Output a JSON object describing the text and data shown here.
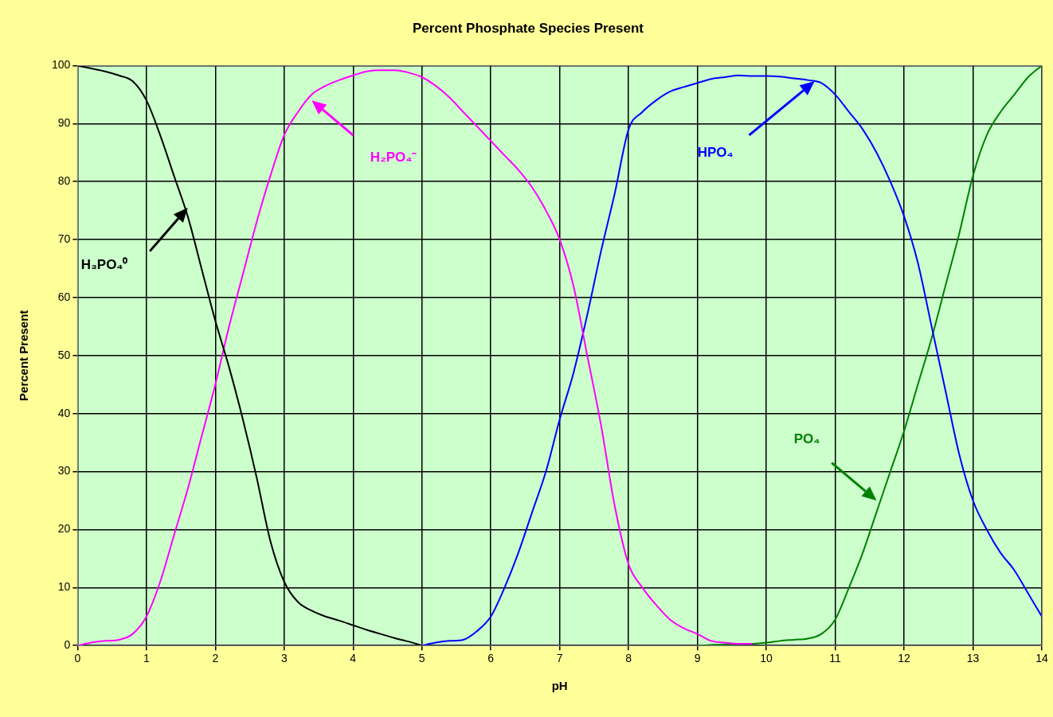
{
  "chart_data": {
    "type": "line",
    "title": "Percent Phosphate Species Present",
    "xlabel": "pH",
    "ylabel": "Percent Present",
    "xlim": [
      0,
      14
    ],
    "xticks": [
      0,
      1,
      2,
      3,
      4,
      5,
      6,
      7,
      8,
      9,
      10,
      11,
      12,
      13,
      14
    ],
    "ylim": [
      0,
      100
    ],
    "yticks": [
      0,
      10,
      20,
      30,
      40,
      50,
      60,
      70,
      80,
      90,
      100
    ],
    "grid": true,
    "legend": false,
    "series": [
      {
        "name": "H₃PO₄⁰",
        "color": "#000000",
        "x": [
          0,
          0.2,
          0.4,
          0.6,
          0.8,
          1,
          1.2,
          1.4,
          1.6,
          1.8,
          2,
          2.2,
          2.4,
          2.6,
          2.8,
          3,
          3.2,
          3.4,
          3.6,
          3.8,
          4,
          4.2,
          4.4,
          4.6,
          4.8,
          5
        ],
        "values": [
          100,
          99.5,
          99,
          98.3,
          97.3,
          94,
          88,
          81,
          74,
          65,
          56,
          48,
          39,
          29,
          18,
          11,
          7.5,
          6,
          5,
          4.3,
          3.5,
          2.7,
          2,
          1.3,
          0.7,
          0
        ]
      },
      {
        "name": "H₂PO₄⁻",
        "color": "#ff00ff",
        "x": [
          0,
          0.2,
          0.4,
          0.6,
          0.8,
          1,
          1.2,
          1.4,
          1.6,
          1.8,
          2,
          2.2,
          2.4,
          2.6,
          2.8,
          3,
          3.2,
          3.4,
          3.6,
          3.8,
          4,
          4.2,
          4.4,
          4.6,
          4.8,
          5,
          5.2,
          5.4,
          5.6,
          5.8,
          6,
          6.2,
          6.4,
          6.6,
          6.8,
          7,
          7.2,
          7.4,
          7.6,
          7.8,
          8,
          8.2,
          8.4,
          8.6,
          8.8,
          9,
          9.2,
          9.4,
          9.6,
          9.8
        ],
        "values": [
          0,
          0.5,
          0.8,
          1,
          2,
          5,
          11,
          19,
          27,
          36,
          45,
          55,
          64,
          73,
          81,
          88,
          92,
          95,
          96.5,
          97.5,
          98.3,
          99,
          99.2,
          99.2,
          98.8,
          98,
          96.5,
          94.5,
          92,
          89.5,
          87,
          84.5,
          82,
          79,
          75,
          70,
          62,
          50,
          38,
          24,
          14,
          10,
          7,
          4.5,
          3,
          2,
          0.8,
          0.5,
          0.3,
          0.3
        ]
      },
      {
        "name": "HPO₄",
        "color": "#0000ff",
        "x": [
          5,
          5.2,
          5.4,
          5.6,
          5.8,
          6,
          6.2,
          6.4,
          6.6,
          6.8,
          7,
          7.2,
          7.4,
          7.6,
          7.8,
          8,
          8.2,
          8.4,
          8.6,
          8.8,
          9,
          9.2,
          9.4,
          9.6,
          9.8,
          10,
          10.2,
          10.4,
          10.6,
          10.8,
          11,
          11.2,
          11.4,
          11.6,
          11.8,
          12,
          12.2,
          12.4,
          12.6,
          12.8,
          13,
          13.2,
          13.4,
          13.6,
          13.8,
          14
        ],
        "values": [
          0,
          0.5,
          0.8,
          1,
          2.5,
          5,
          10,
          16,
          23,
          30,
          39,
          47,
          57,
          68,
          78,
          89,
          92,
          94,
          95.5,
          96.3,
          97,
          97.7,
          98,
          98.3,
          98.2,
          98.2,
          98.1,
          97.8,
          97.5,
          97,
          95,
          92,
          89,
          85,
          80,
          74,
          66,
          55,
          44,
          33,
          25,
          20,
          16,
          13,
          9,
          5
        ]
      },
      {
        "name": "PO₄",
        "color": "#008000",
        "x": [
          9,
          9.4,
          9.8,
          10,
          10.2,
          10.4,
          10.6,
          10.8,
          11,
          11.2,
          11.4,
          11.6,
          11.8,
          12,
          12.2,
          12.4,
          12.6,
          12.8,
          13,
          13.2,
          13.4,
          13.6,
          13.8,
          14
        ],
        "values": [
          0,
          0.2,
          0.3,
          0.5,
          0.8,
          1,
          1.2,
          2,
          4.5,
          10,
          16,
          23,
          30,
          37,
          45,
          53,
          62,
          71,
          81,
          88,
          92,
          95,
          98,
          100
        ]
      }
    ]
  }
}
